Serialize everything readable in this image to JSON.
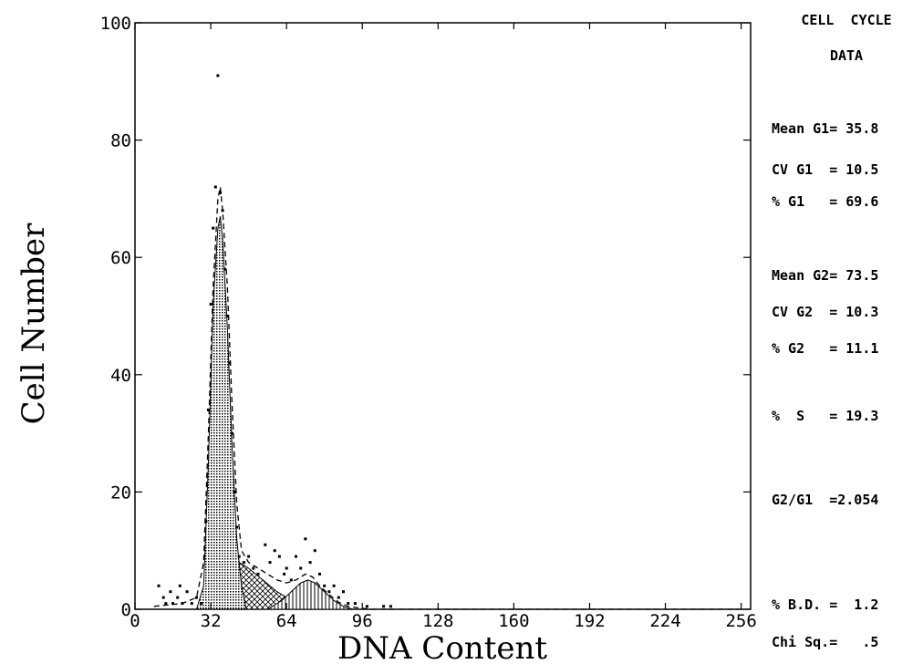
{
  "chart_data": {
    "type": "histogram",
    "xlabel": "DNA Content",
    "ylabel": "Cell Number",
    "xlim": [
      0,
      260
    ],
    "ylim": [
      0,
      100
    ],
    "x_ticks": [
      0,
      32,
      64,
      96,
      128,
      160,
      192,
      224,
      256
    ],
    "y_ticks": [
      0,
      20,
      40,
      60,
      80,
      100
    ],
    "scatter_points": [
      [
        10,
        4
      ],
      [
        12,
        2
      ],
      [
        13,
        1
      ],
      [
        15,
        3
      ],
      [
        16,
        1
      ],
      [
        18,
        2
      ],
      [
        19,
        4
      ],
      [
        20,
        1
      ],
      [
        22,
        3
      ],
      [
        24,
        1
      ],
      [
        26,
        2
      ],
      [
        28,
        1
      ],
      [
        30,
        15
      ],
      [
        31,
        34
      ],
      [
        32,
        52
      ],
      [
        33,
        65
      ],
      [
        34,
        72
      ],
      [
        35,
        91
      ],
      [
        36,
        71
      ],
      [
        37,
        68
      ],
      [
        38,
        58
      ],
      [
        39,
        50
      ],
      [
        40,
        42
      ],
      [
        41,
        30
      ],
      [
        42,
        20
      ],
      [
        43,
        14
      ],
      [
        44,
        9
      ],
      [
        46,
        8
      ],
      [
        48,
        9
      ],
      [
        50,
        7
      ],
      [
        52,
        6
      ],
      [
        55,
        11
      ],
      [
        57,
        8
      ],
      [
        59,
        10
      ],
      [
        61,
        9
      ],
      [
        63,
        6
      ],
      [
        64,
        7
      ],
      [
        66,
        5
      ],
      [
        68,
        9
      ],
      [
        70,
        7
      ],
      [
        72,
        12
      ],
      [
        74,
        8
      ],
      [
        76,
        10
      ],
      [
        78,
        6
      ],
      [
        80,
        4
      ],
      [
        82,
        3
      ],
      [
        84,
        4
      ],
      [
        86,
        2
      ],
      [
        88,
        3
      ],
      [
        90,
        1
      ],
      [
        93,
        1
      ],
      [
        98,
        0.5
      ],
      [
        105,
        0.5
      ],
      [
        108,
        0.5
      ]
    ],
    "fit_curve": [
      [
        8,
        0.5
      ],
      [
        20,
        1
      ],
      [
        26,
        2
      ],
      [
        29,
        8
      ],
      [
        31,
        30
      ],
      [
        33,
        55
      ],
      [
        35,
        70
      ],
      [
        36,
        72
      ],
      [
        37,
        68
      ],
      [
        39,
        55
      ],
      [
        41,
        35
      ],
      [
        43,
        18
      ],
      [
        45,
        10
      ],
      [
        48,
        8
      ],
      [
        52,
        7
      ],
      [
        56,
        6
      ],
      [
        60,
        5
      ],
      [
        64,
        4.5
      ],
      [
        68,
        5
      ],
      [
        72,
        6
      ],
      [
        75,
        5.5
      ],
      [
        78,
        4
      ],
      [
        82,
        2.5
      ],
      [
        86,
        1.2
      ],
      [
        90,
        0.5
      ],
      [
        95,
        0.2
      ],
      [
        100,
        0
      ],
      [
        256,
        0
      ]
    ],
    "g1_peak": [
      [
        26,
        0
      ],
      [
        29,
        4
      ],
      [
        31,
        25
      ],
      [
        33,
        52
      ],
      [
        35,
        65
      ],
      [
        36,
        67
      ],
      [
        37,
        63
      ],
      [
        39,
        48
      ],
      [
        41,
        28
      ],
      [
        43,
        12
      ],
      [
        45,
        4
      ],
      [
        47,
        0
      ]
    ],
    "s_phase": [
      [
        33,
        0
      ],
      [
        36,
        3
      ],
      [
        40,
        7
      ],
      [
        44,
        8
      ],
      [
        48,
        7
      ],
      [
        54,
        5
      ],
      [
        60,
        3
      ],
      [
        64,
        2
      ],
      [
        70,
        1
      ],
      [
        78,
        0.5
      ],
      [
        86,
        0
      ]
    ],
    "g2_peak": [
      [
        56,
        0
      ],
      [
        62,
        1.5
      ],
      [
        66,
        3
      ],
      [
        70,
        4.5
      ],
      [
        73,
        5
      ],
      [
        76,
        4.5
      ],
      [
        80,
        3
      ],
      [
        84,
        1.5
      ],
      [
        88,
        0.5
      ],
      [
        92,
        0
      ]
    ]
  },
  "side_panel": {
    "title_line1": "CELL  CYCLE",
    "title_line2": "DATA",
    "mean_g1": "Mean G1= 35.8",
    "cv_g1": "CV G1  = 10.5",
    "pct_g1": "% G1   = 69.6",
    "mean_g2": "Mean G2= 73.5",
    "cv_g2": "CV G2  = 10.3",
    "pct_g2": "% G2   = 11.1",
    "pct_s": "%  S   = 19.3",
    "ratio": "G2/G1  =2.054",
    "pct_bd": "% B.D. =  1.2",
    "chi_sq": "Chi Sq.=   .5"
  }
}
